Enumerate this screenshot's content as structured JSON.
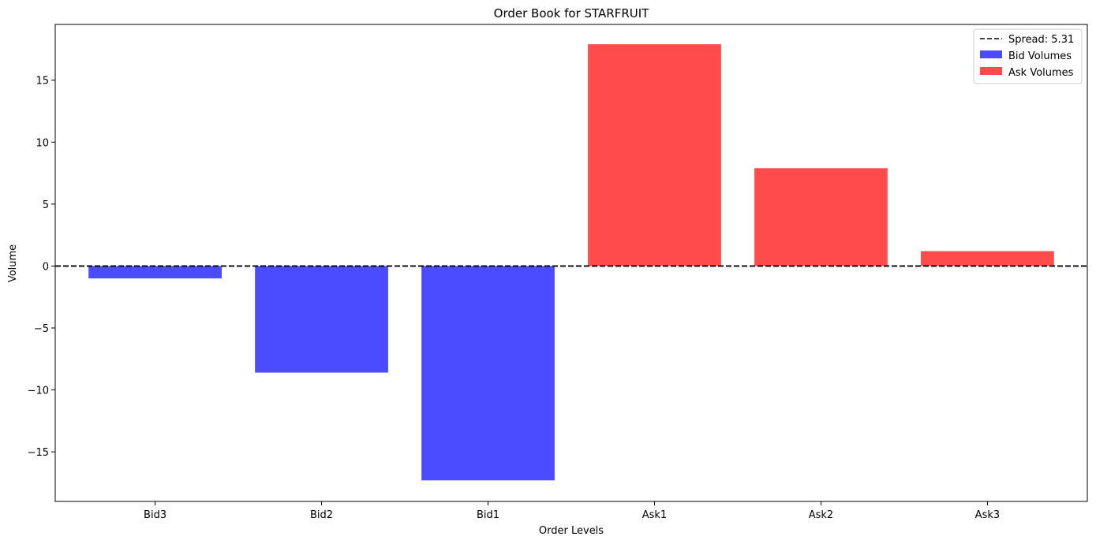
{
  "chart_data": {
    "type": "bar",
    "title": "Order Book for STARFRUIT",
    "xlabel": "Order Levels",
    "ylabel": "Volume",
    "categories": [
      "Bid3",
      "Bid2",
      "Bid1",
      "Ask1",
      "Ask2",
      "Ask3"
    ],
    "series": [
      {
        "name": "Bid Volumes",
        "color": "#4b4bff",
        "values": [
          -1.0,
          -8.6,
          -17.3,
          null,
          null,
          null
        ]
      },
      {
        "name": "Ask Volumes",
        "color": "#ff4b4b",
        "values": [
          null,
          null,
          null,
          17.9,
          7.9,
          1.2
        ]
      }
    ],
    "reference_line": {
      "label": "Spread: 5.31",
      "y": 0,
      "style": "dashed",
      "color": "#000000"
    },
    "ylim": [
      -19,
      19.5
    ],
    "yticks": [
      -15,
      -10,
      -5,
      0,
      5,
      10,
      15
    ],
    "ytick_labels": [
      "−15",
      "−10",
      "−5",
      "0",
      "5",
      "10",
      "15"
    ],
    "legend_position": "top-right",
    "grid": false
  }
}
